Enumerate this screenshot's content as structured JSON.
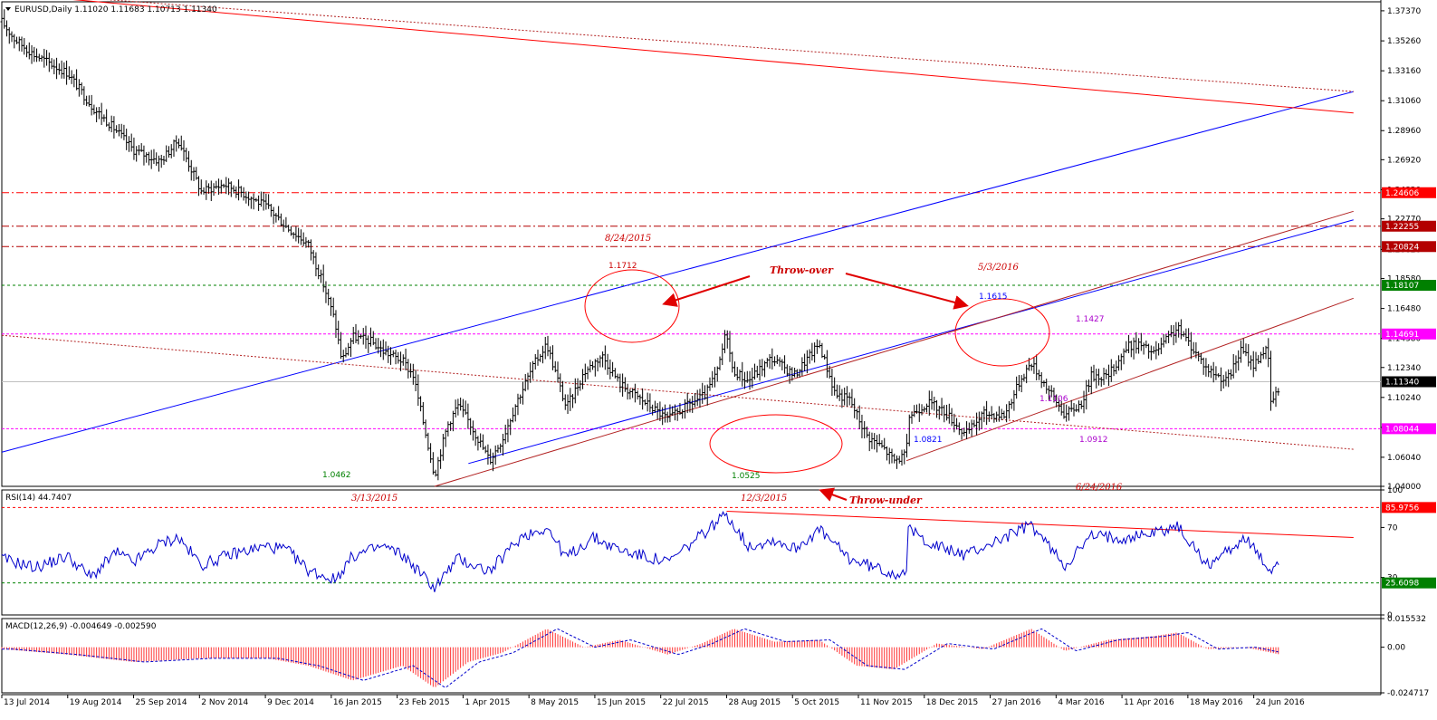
{
  "chart_data": [
    {
      "type": "ohlc",
      "header": "EURUSD,Daily  1.11020 1.11683 1.10713 1.11340",
      "symbol": "EURUSD",
      "timeframe": "Daily",
      "ohlc_last": {
        "open": 1.1102,
        "high": 1.11683,
        "low": 1.10713,
        "close": 1.1134
      },
      "ylim": [
        1.04,
        1.38
      ],
      "y_ticks": [
        "1.37370",
        "1.35260",
        "1.33160",
        "1.31060",
        "1.28960",
        "1.26920",
        "1.24820",
        "1.22770",
        "1.20620",
        "1.18580",
        "1.16480",
        "1.14380",
        "1.12340",
        "1.10240",
        "1.08140",
        "1.06040",
        "1.04000"
      ],
      "x_ticks": [
        "13 Jul 2014",
        "19 Aug 2014",
        "25 Sep 2014",
        "2 Nov 2014",
        "9 Dec 2014",
        "16 Jan 2015",
        "23 Feb 2015",
        "1 Apr 2015",
        "8 May 2015",
        "15 Jun 2015",
        "22 Jul 2015",
        "28 Aug 2015",
        "5 Oct 2015",
        "11 Nov 2015",
        "18 Dec 2015",
        "27 Jan 2016",
        "4 Mar 2016",
        "11 Apr 2016",
        "18 May 2016",
        "24 Jun 2016"
      ],
      "price_path": [
        [
          "2014-07-13",
          1.366
        ],
        [
          "2014-07-20",
          1.354
        ],
        [
          "2014-07-31",
          1.343
        ],
        [
          "2014-08-19",
          1.33
        ],
        [
          "2014-09-02",
          1.306
        ],
        [
          "2014-09-15",
          1.29
        ],
        [
          "2014-09-25",
          1.276
        ],
        [
          "2014-10-10",
          1.268
        ],
        [
          "2014-10-20",
          1.283
        ],
        [
          "2014-11-02",
          1.247
        ],
        [
          "2014-11-15",
          1.252
        ],
        [
          "2014-11-25",
          1.246
        ],
        [
          "2014-12-09",
          1.236
        ],
        [
          "2014-12-20",
          1.222
        ],
        [
          "2015-01-01",
          1.21
        ],
        [
          "2015-01-10",
          1.18
        ],
        [
          "2015-01-16",
          1.156
        ],
        [
          "2015-01-20",
          1.128
        ],
        [
          "2015-01-26",
          1.145
        ],
        [
          "2015-02-05",
          1.142
        ],
        [
          "2015-02-12",
          1.135
        ],
        [
          "2015-02-23",
          1.128
        ],
        [
          "2015-03-01",
          1.118
        ],
        [
          "2015-03-13",
          1.048
        ],
        [
          "2015-03-20",
          1.082
        ],
        [
          "2015-03-26",
          1.097
        ],
        [
          "2015-04-01",
          1.086
        ],
        [
          "2015-04-13",
          1.058
        ],
        [
          "2015-04-20",
          1.073
        ],
        [
          "2015-04-28",
          1.099
        ],
        [
          "2015-05-08",
          1.126
        ],
        [
          "2015-05-15",
          1.14
        ],
        [
          "2015-05-26",
          1.095
        ],
        [
          "2015-06-05",
          1.12
        ],
        [
          "2015-06-15",
          1.132
        ],
        [
          "2015-06-25",
          1.112
        ],
        [
          "2015-07-08",
          1.1
        ],
        [
          "2015-07-22",
          1.087
        ],
        [
          "2015-08-01",
          1.096
        ],
        [
          "2015-08-12",
          1.104
        ],
        [
          "2015-08-19",
          1.121
        ],
        [
          "2015-08-24",
          1.15
        ],
        [
          "2015-08-27",
          1.122
        ],
        [
          "2015-09-05",
          1.114
        ],
        [
          "2015-09-18",
          1.13
        ],
        [
          "2015-10-01",
          1.118
        ],
        [
          "2015-10-15",
          1.14
        ],
        [
          "2015-10-24",
          1.105
        ],
        [
          "2015-11-01",
          1.101
        ],
        [
          "2015-11-11",
          1.075
        ],
        [
          "2015-11-20",
          1.067
        ],
        [
          "2015-11-26",
          1.058
        ],
        [
          "2015-12-03",
          1.062
        ],
        [
          "2015-12-04",
          1.089
        ],
        [
          "2015-12-15",
          1.099
        ],
        [
          "2015-12-25",
          1.092
        ],
        [
          "2016-01-05",
          1.076
        ],
        [
          "2016-01-15",
          1.091
        ],
        [
          "2016-01-27",
          1.09
        ],
        [
          "2016-02-05",
          1.115
        ],
        [
          "2016-02-11",
          1.127
        ],
        [
          "2016-02-20",
          1.109
        ],
        [
          "2016-03-01",
          1.09
        ],
        [
          "2016-03-10",
          1.098
        ],
        [
          "2016-03-16",
          1.118
        ],
        [
          "2016-03-25",
          1.117
        ],
        [
          "2016-04-05",
          1.138
        ],
        [
          "2016-04-11",
          1.14
        ],
        [
          "2016-04-20",
          1.133
        ],
        [
          "2016-05-03",
          1.151
        ],
        [
          "2016-05-10",
          1.14
        ],
        [
          "2016-05-20",
          1.122
        ],
        [
          "2016-05-31",
          1.114
        ],
        [
          "2016-06-08",
          1.136
        ],
        [
          "2016-06-15",
          1.125
        ],
        [
          "2016-06-20",
          1.135
        ],
        [
          "2016-06-23",
          1.135
        ],
        [
          "2016-06-24",
          1.098
        ],
        [
          "2016-06-27",
          1.103
        ],
        [
          "2016-06-30",
          1.111
        ]
      ],
      "horizontal_levels": [
        {
          "value": "1.24606",
          "color": "#ff0000"
        },
        {
          "value": "1.22255",
          "color": "#b30000"
        },
        {
          "value": "1.20824",
          "color": "#b30000"
        },
        {
          "value": "1.18107",
          "color": "#008000"
        },
        {
          "value": "1.14691",
          "color": "#ff00ff"
        },
        {
          "value": "1.11340",
          "color": "#000000"
        },
        {
          "value": "1.08044",
          "color": "#ff00ff"
        }
      ],
      "trendlines": [
        {
          "color": "#0000ff",
          "from": [
            "2014-07-13",
            1.064
          ],
          "to": [
            "2016-08-10",
            1.317
          ]
        },
        {
          "color": "#0000ff",
          "from": [
            "2015-04-01",
            1.056
          ],
          "to": [
            "2016-08-10",
            1.227
          ]
        },
        {
          "color": "#b22222",
          "from": [
            "2015-03-13",
            1.04
          ],
          "to": [
            "2016-08-10",
            1.233
          ]
        },
        {
          "color": "#b22222",
          "from": [
            "2015-12-03",
            1.058
          ],
          "to": [
            "2016-08-10",
            1.172
          ]
        },
        {
          "color": "#ff0000",
          "from": [
            "2014-07-13",
            1.386
          ],
          "to": [
            "2016-08-10",
            1.302
          ]
        },
        {
          "color": "#b22222",
          "style": "dotted",
          "from": [
            "2014-07-13",
            1.387
          ],
          "to": [
            "2016-08-10",
            1.317
          ]
        },
        {
          "color": "#b22222",
          "style": "dotted",
          "from": [
            "2014-07-13",
            1.146
          ],
          "to": [
            "2016-08-10",
            1.066
          ]
        }
      ],
      "annotations": [
        {
          "text": "8/24/2015",
          "color": "#cc0000"
        },
        {
          "text": "1.1712",
          "color": "#cc0000"
        },
        {
          "text": "Throw-over",
          "color": "#cc0000"
        },
        {
          "text": "5/3/2016",
          "color": "#cc0000"
        },
        {
          "text": "1.1615",
          "color": "#0000ff"
        },
        {
          "text": "1.1427",
          "color": "#aa00cc"
        },
        {
          "text": "1.1106",
          "color": "#aa00cc"
        },
        {
          "text": "1.0821",
          "color": "#0000ff"
        },
        {
          "text": "1.0912",
          "color": "#aa00cc"
        },
        {
          "text": "6/24/2016",
          "color": "#cc0000"
        },
        {
          "text": "1.0462",
          "color": "#008000"
        },
        {
          "text": "1.0525",
          "color": "#008000"
        },
        {
          "text": "Throw-under",
          "color": "#cc0000"
        }
      ]
    },
    {
      "type": "line",
      "header": "RSI(14) 44.7407",
      "indicator": "RSI(14)",
      "value": 44.7407,
      "ylim": [
        0,
        100
      ],
      "y_ticks": [
        "100",
        "70",
        "30",
        "0"
      ],
      "levels": [
        {
          "value": "85.9756",
          "color": "#ff0000"
        },
        {
          "value": "25.6098",
          "color": "#008000"
        }
      ],
      "path": [
        [
          "2014-07-13",
          45
        ],
        [
          "2014-08-01",
          38
        ],
        [
          "2014-08-19",
          47
        ],
        [
          "2014-09-01",
          30
        ],
        [
          "2014-09-15",
          50
        ],
        [
          "2014-09-25",
          42
        ],
        [
          "2014-10-10",
          57
        ],
        [
          "2014-10-20",
          62
        ],
        [
          "2014-11-02",
          40
        ],
        [
          "2014-11-20",
          49
        ],
        [
          "2014-12-09",
          55
        ],
        [
          "2014-12-20",
          52
        ],
        [
          "2015-01-01",
          36
        ],
        [
          "2015-01-16",
          28
        ],
        [
          "2015-01-26",
          47
        ],
        [
          "2015-02-12",
          55
        ],
        [
          "2015-02-23",
          48
        ],
        [
          "2015-03-13",
          22
        ],
        [
          "2015-03-26",
          45
        ],
        [
          "2015-04-13",
          35
        ],
        [
          "2015-05-01",
          63
        ],
        [
          "2015-05-15",
          70
        ],
        [
          "2015-05-26",
          46
        ],
        [
          "2015-06-10",
          62
        ],
        [
          "2015-06-25",
          52
        ],
        [
          "2015-07-22",
          42
        ],
        [
          "2015-08-05",
          58
        ],
        [
          "2015-08-24",
          81
        ],
        [
          "2015-09-05",
          55
        ],
        [
          "2015-09-20",
          60
        ],
        [
          "2015-10-01",
          53
        ],
        [
          "2015-10-15",
          68
        ],
        [
          "2015-11-01",
          45
        ],
        [
          "2015-11-15",
          38
        ],
        [
          "2015-11-26",
          33
        ],
        [
          "2015-12-03",
          36
        ],
        [
          "2015-12-04",
          68
        ],
        [
          "2015-12-20",
          55
        ],
        [
          "2016-01-05",
          48
        ],
        [
          "2016-01-27",
          62
        ],
        [
          "2016-02-11",
          72
        ],
        [
          "2016-03-01",
          40
        ],
        [
          "2016-03-16",
          63
        ],
        [
          "2016-04-05",
          62
        ],
        [
          "2016-04-20",
          66
        ],
        [
          "2016-05-03",
          71
        ],
        [
          "2016-05-20",
          40
        ],
        [
          "2016-06-01",
          52
        ],
        [
          "2016-06-10",
          62
        ],
        [
          "2016-06-24",
          35
        ],
        [
          "2016-06-30",
          45
        ]
      ],
      "trendlines": [
        {
          "color": "#ff0000",
          "from": [
            "2015-08-24",
            83
          ],
          "to": [
            "2016-08-10",
            62
          ]
        }
      ]
    },
    {
      "type": "histogram",
      "header": "MACD(12,26,9) -0.004649 -0.002590",
      "indicator": "MACD(12,26,9)",
      "values": {
        "macd": -0.004649,
        "signal": -0.00259
      },
      "ylim": [
        -0.024717,
        0.015532
      ],
      "y_ticks": [
        "0.015532",
        "0.00",
        "-0.024717"
      ],
      "path": [
        [
          "2014-07-13",
          -0.001
        ],
        [
          "2014-08-19",
          -0.004
        ],
        [
          "2014-09-25",
          -0.008
        ],
        [
          "2014-11-02",
          -0.006
        ],
        [
          "2014-12-09",
          -0.006
        ],
        [
          "2015-01-01",
          -0.01
        ],
        [
          "2015-01-26",
          -0.018
        ],
        [
          "2015-02-23",
          -0.01
        ],
        [
          "2015-03-13",
          -0.022
        ],
        [
          "2015-04-01",
          -0.008
        ],
        [
          "2015-04-20",
          -0.003
        ],
        [
          "2015-05-15",
          0.01
        ],
        [
          "2015-06-05",
          0.0
        ],
        [
          "2015-06-25",
          0.004
        ],
        [
          "2015-07-22",
          -0.004
        ],
        [
          "2015-08-10",
          0.002
        ],
        [
          "2015-08-28",
          0.01
        ],
        [
          "2015-09-20",
          0.003
        ],
        [
          "2015-10-15",
          0.004
        ],
        [
          "2015-11-05",
          -0.01
        ],
        [
          "2015-11-26",
          -0.012
        ],
        [
          "2015-12-20",
          0.002
        ],
        [
          "2016-01-15",
          -0.001
        ],
        [
          "2016-02-11",
          0.01
        ],
        [
          "2016-03-01",
          -0.002
        ],
        [
          "2016-03-25",
          0.004
        ],
        [
          "2016-04-20",
          0.006
        ],
        [
          "2016-05-03",
          0.008
        ],
        [
          "2016-05-20",
          -0.001
        ],
        [
          "2016-06-10",
          0.0
        ],
        [
          "2016-06-30",
          -0.004
        ]
      ]
    }
  ]
}
